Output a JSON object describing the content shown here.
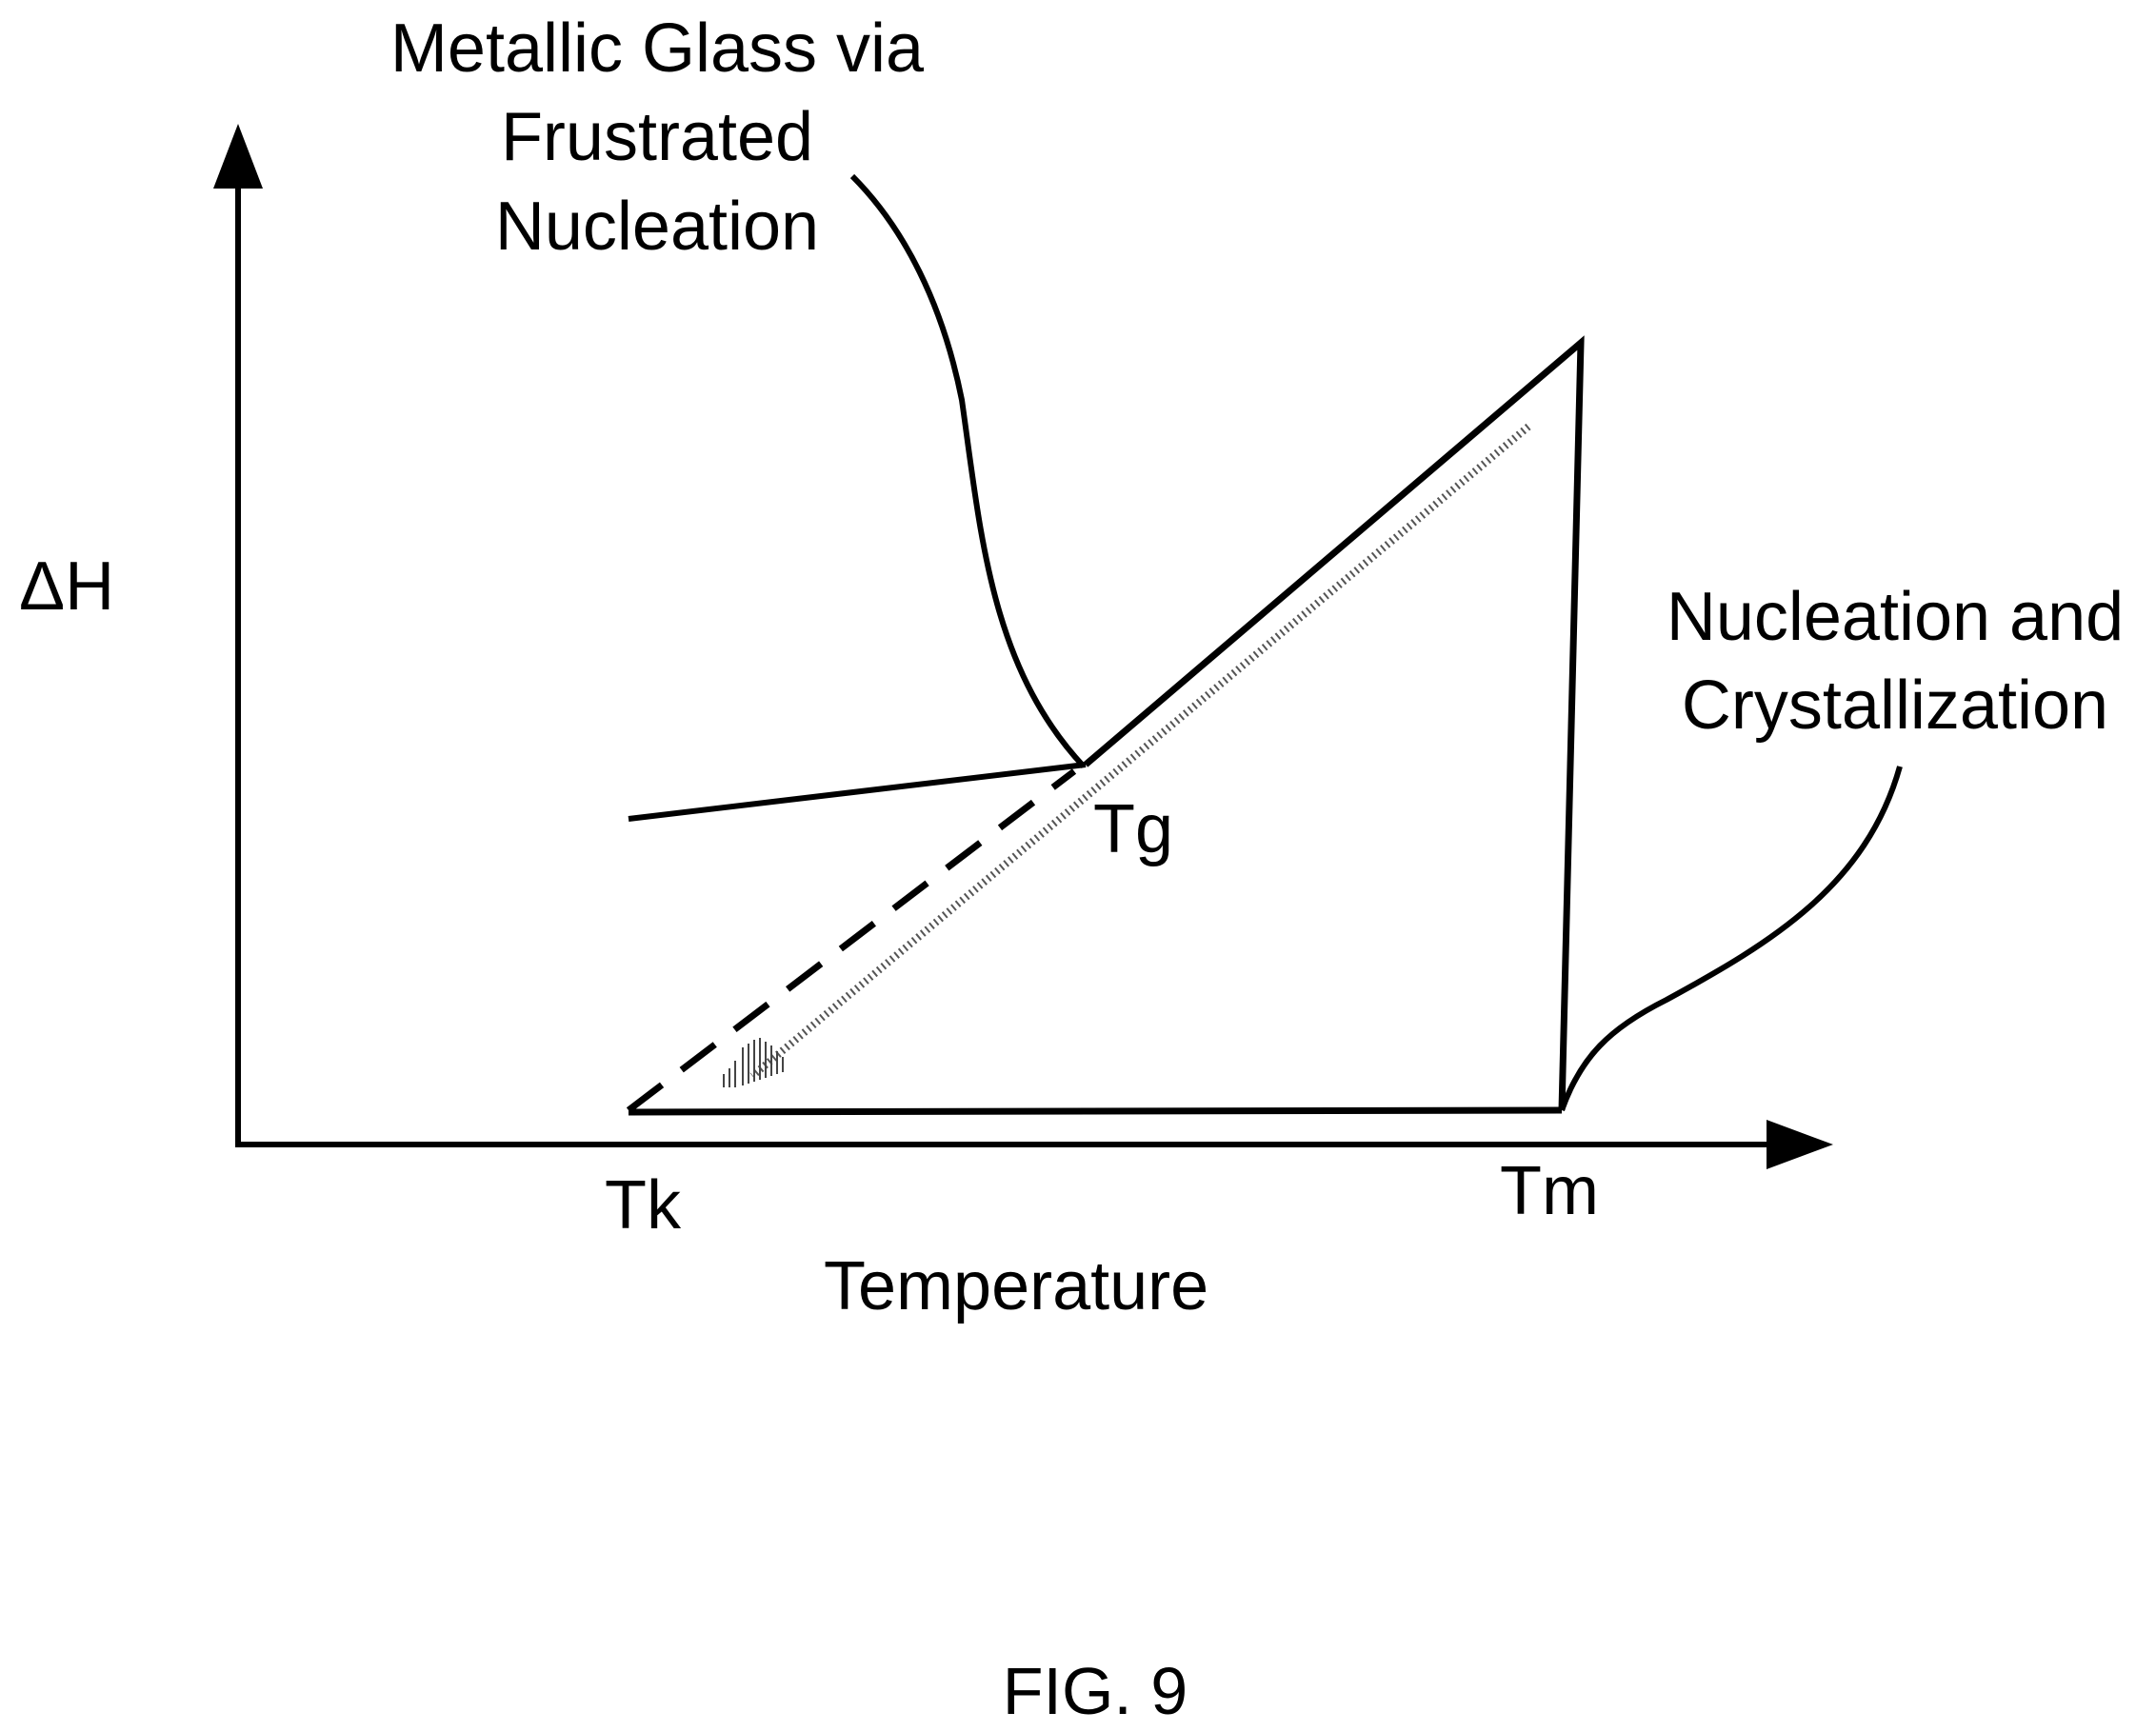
{
  "labels": {
    "y_axis": "ΔH",
    "x_axis": "Temperature",
    "tk": "Tk",
    "tg": "Tg",
    "tm": "Tm",
    "glass_line1": "Metallic Glass via",
    "glass_line2": "Frustrated",
    "glass_line3": "Nucleation",
    "cryst_line1": "Nucleation and",
    "cryst_line2": "Crystallization"
  },
  "caption": "FIG. 9",
  "colors": {
    "ink": "#000000",
    "background": "#ffffff"
  }
}
